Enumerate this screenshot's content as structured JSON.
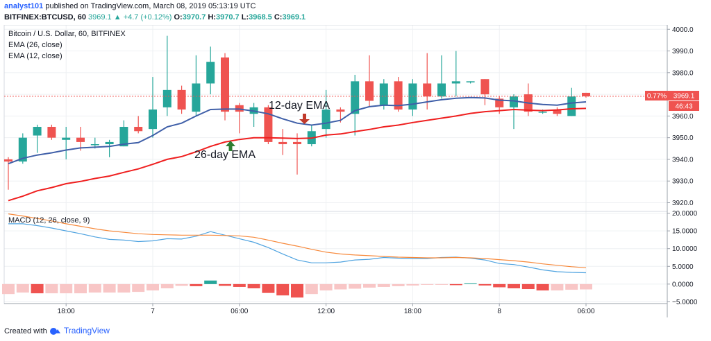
{
  "header": {
    "author": "analyst101",
    "published_text": "published on TradingView.com, March 08, 2019 05:13:19 UTC",
    "symbol": "BITFINEX:BTCUSD, 60",
    "last": "3969.1",
    "change": "▲ +4.7 (+0.12%)",
    "o_label": "O:",
    "o_value": "3970.7",
    "h_label": "H:",
    "h_value": "3970.7",
    "l_label": "L:",
    "l_value": "3968.5",
    "c_label": "C:",
    "c_value": "3969.1"
  },
  "legend": {
    "title": "Bitcoin / U.S. Dollar, 60, BITFINEX",
    "ema26": "EMA (26, close)",
    "ema12": "EMA (12, close)",
    "macd": "MACD (12, 26, close, 9)"
  },
  "annotations": {
    "ema12_label": "12-day EMA",
    "ema26_label": "26-day EMA"
  },
  "badges": {
    "pct": "0.77%",
    "price": "3969.1",
    "countdown": "46:43"
  },
  "footer": {
    "created_with": "Created with",
    "brand": "TradingView"
  },
  "colors": {
    "up": "#26a69a",
    "down": "#ef5350",
    "ema26": "#ef1f1f",
    "ema12": "#3f5fa8",
    "macd_line": "#4fa3e0",
    "signal_line": "#f7893b",
    "hist_neg": "#ef5350",
    "hist_neg_light": "#f8c6c6",
    "hist_pos": "#26a69a",
    "annotation_up": "#2e7d32",
    "annotation_down": "#c0392b"
  },
  "chart_data": {
    "type": "candlestick",
    "x_ticks": [
      {
        "label": "18:00",
        "index": 4
      },
      {
        "label": "7",
        "index": 10
      },
      {
        "label": "06:00",
        "index": 16
      },
      {
        "label": "12:00",
        "index": 22
      },
      {
        "label": "18:00",
        "index": 28
      },
      {
        "label": "8",
        "index": 34
      },
      {
        "label": "06:00",
        "index": 40
      }
    ],
    "price_axis": {
      "ylim": [
        3916,
        4002
      ],
      "ticks": [
        "4000.0",
        "3990.0",
        "3980.0",
        "3970.0",
        "3960.0",
        "3950.0",
        "3940.0",
        "3930.0",
        "3920.0"
      ]
    },
    "macd_axis": {
      "ylim": [
        -5.5,
        20.5
      ],
      "ticks": [
        "20.0000",
        "15.0000",
        "10.0000",
        "5.0000",
        "0.0000",
        "−5.0000"
      ]
    },
    "candles": [
      {
        "o": 3940,
        "h": 3941,
        "l": 3926,
        "c": 3939
      },
      {
        "o": 3939,
        "h": 3952,
        "l": 3938,
        "c": 3950
      },
      {
        "o": 3951,
        "h": 3956,
        "l": 3943,
        "c": 3955
      },
      {
        "o": 3955,
        "h": 3956,
        "l": 3949,
        "c": 3950
      },
      {
        "o": 3949,
        "h": 3955,
        "l": 3940,
        "c": 3950
      },
      {
        "o": 3950,
        "h": 3955,
        "l": 3944,
        "c": 3948
      },
      {
        "o": 3947,
        "h": 3950,
        "l": 3945,
        "c": 3947
      },
      {
        "o": 3947,
        "h": 3949,
        "l": 3941,
        "c": 3948
      },
      {
        "o": 3946,
        "h": 3958,
        "l": 3946,
        "c": 3955
      },
      {
        "o": 3955,
        "h": 3960,
        "l": 3952,
        "c": 3953
      },
      {
        "o": 3954,
        "h": 3978,
        "l": 3950,
        "c": 3963
      },
      {
        "o": 3964,
        "h": 3997,
        "l": 3960,
        "c": 3972
      },
      {
        "o": 3972,
        "h": 3974,
        "l": 3961,
        "c": 3963
      },
      {
        "o": 3962,
        "h": 3988,
        "l": 3960,
        "c": 3975
      },
      {
        "o": 3975,
        "h": 3992,
        "l": 3970,
        "c": 3985
      },
      {
        "o": 3987,
        "h": 3989,
        "l": 3958,
        "c": 3962
      },
      {
        "o": 3965,
        "h": 3966,
        "l": 3952,
        "c": 3962
      },
      {
        "o": 3961,
        "h": 3966,
        "l": 3955,
        "c": 3964
      },
      {
        "o": 3964,
        "h": 3965,
        "l": 3947,
        "c": 3948
      },
      {
        "o": 3948,
        "h": 3954,
        "l": 3942,
        "c": 3947
      },
      {
        "o": 3948,
        "h": 3952,
        "l": 3933,
        "c": 3947
      },
      {
        "o": 3947,
        "h": 3956,
        "l": 3946,
        "c": 3953
      },
      {
        "o": 3954,
        "h": 3972,
        "l": 3950,
        "c": 3963
      },
      {
        "o": 3963,
        "h": 3964,
        "l": 3957,
        "c": 3962
      },
      {
        "o": 3961,
        "h": 3979,
        "l": 3951,
        "c": 3976
      },
      {
        "o": 3976,
        "h": 3988,
        "l": 3964,
        "c": 3967
      },
      {
        "o": 3965,
        "h": 3977,
        "l": 3963,
        "c": 3975
      },
      {
        "o": 3976,
        "h": 3978,
        "l": 3962,
        "c": 3963
      },
      {
        "o": 3963,
        "h": 3977,
        "l": 3960,
        "c": 3975
      },
      {
        "o": 3975,
        "h": 3989,
        "l": 3963,
        "c": 3969
      },
      {
        "o": 3969,
        "h": 3988,
        "l": 3968,
        "c": 3975
      },
      {
        "o": 3975,
        "h": 3990,
        "l": 3969,
        "c": 3976
      },
      {
        "o": 3976,
        "h": 3976,
        "l": 3975,
        "c": 3976
      },
      {
        "o": 3977,
        "h": 3977,
        "l": 3965,
        "c": 3970
      },
      {
        "o": 3968,
        "h": 3969,
        "l": 3961,
        "c": 3964
      },
      {
        "o": 3964,
        "h": 3970,
        "l": 3954,
        "c": 3969
      },
      {
        "o": 3970,
        "h": 3975,
        "l": 3960,
        "c": 3962
      },
      {
        "o": 3962,
        "h": 3963,
        "l": 3961,
        "c": 3962
      },
      {
        "o": 3963,
        "h": 3964,
        "l": 3960,
        "c": 3961
      },
      {
        "o": 3960,
        "h": 3973,
        "l": 3960,
        "c": 3969
      },
      {
        "o": 3970.7,
        "h": 3970.7,
        "l": 3968.5,
        "c": 3969.1
      }
    ],
    "ema26": [
      3921,
      3923,
      3925.5,
      3927,
      3928.8,
      3929.8,
      3931.2,
      3932.3,
      3934,
      3935.6,
      3937.7,
      3940,
      3941.3,
      3943.5,
      3946,
      3948,
      3949.2,
      3950,
      3950,
      3949.8,
      3949.6,
      3949.8,
      3951.2,
      3951.7,
      3952.8,
      3953.8,
      3955,
      3955.8,
      3957,
      3958,
      3959,
      3960,
      3961.2,
      3962,
      3962.5,
      3963,
      3962.7,
      3962.5,
      3962.8,
      3963.3,
      3963.5
    ],
    "ema12": [
      3938,
      3940.5,
      3942,
      3943,
      3944.3,
      3945.3,
      3945.6,
      3946,
      3947,
      3947.7,
      3951,
      3955,
      3956.7,
      3960,
      3963,
      3963.2,
      3963.2,
      3962.3,
      3961,
      3958.7,
      3956.7,
      3955.8,
      3956.7,
      3958,
      3962.5,
      3964.3,
      3965,
      3964.8,
      3965.5,
      3966.5,
      3967.5,
      3968.2,
      3968.5,
      3968.3,
      3967.3,
      3967,
      3966,
      3965.3,
      3965,
      3966,
      3966.5
    ],
    "macd": [
      17,
      17,
      16.5,
      15.8,
      15,
      14.2,
      13.3,
      12.6,
      12.4,
      12,
      12.2,
      12.8,
      12.7,
      13.5,
      14.8,
      13.8,
      12.8,
      11.8,
      10.3,
      8.5,
      6.8,
      6,
      6,
      6.2,
      6.8,
      7,
      7.5,
      7.3,
      7.2,
      7.2,
      7.5,
      7.6,
      7.3,
      6.8,
      5.8,
      5.5,
      4.8,
      4,
      3.5,
      3.3,
      3.2
    ],
    "signal": [
      19.8,
      19.2,
      18.5,
      17.8,
      17,
      16.3,
      15.6,
      15,
      14.6,
      14.2,
      14,
      13.9,
      13.8,
      13.8,
      13.8,
      13.7,
      13.6,
      13.2,
      12.4,
      11.5,
      10.7,
      9.8,
      9,
      8.5,
      8.2,
      8,
      7.8,
      7.6,
      7.5,
      7.4,
      7.4,
      7.5,
      7.4,
      7.2,
      6.9,
      6.6,
      6.2,
      5.7,
      5.3,
      4.9,
      4.6
    ],
    "histogram": [
      -2.8,
      -2.4,
      -2.6,
      -2.6,
      -2.6,
      -2.6,
      -2.4,
      -2.4,
      -2.4,
      -2.2,
      -1.8,
      -1.2,
      -0.5,
      -0.6,
      1.0,
      -0.5,
      -0.8,
      -1.2,
      -2.5,
      -3.2,
      -3.8,
      -2.8,
      -1.8,
      -1.5,
      -1.3,
      -1.0,
      -0.8,
      -0.6,
      -0.4,
      -0.2,
      -0.2,
      -0.3,
      0.2,
      -0.4,
      -0.9,
      -1.2,
      -1.4,
      -1.8,
      -1.8,
      -1.6,
      -1.5
    ]
  }
}
